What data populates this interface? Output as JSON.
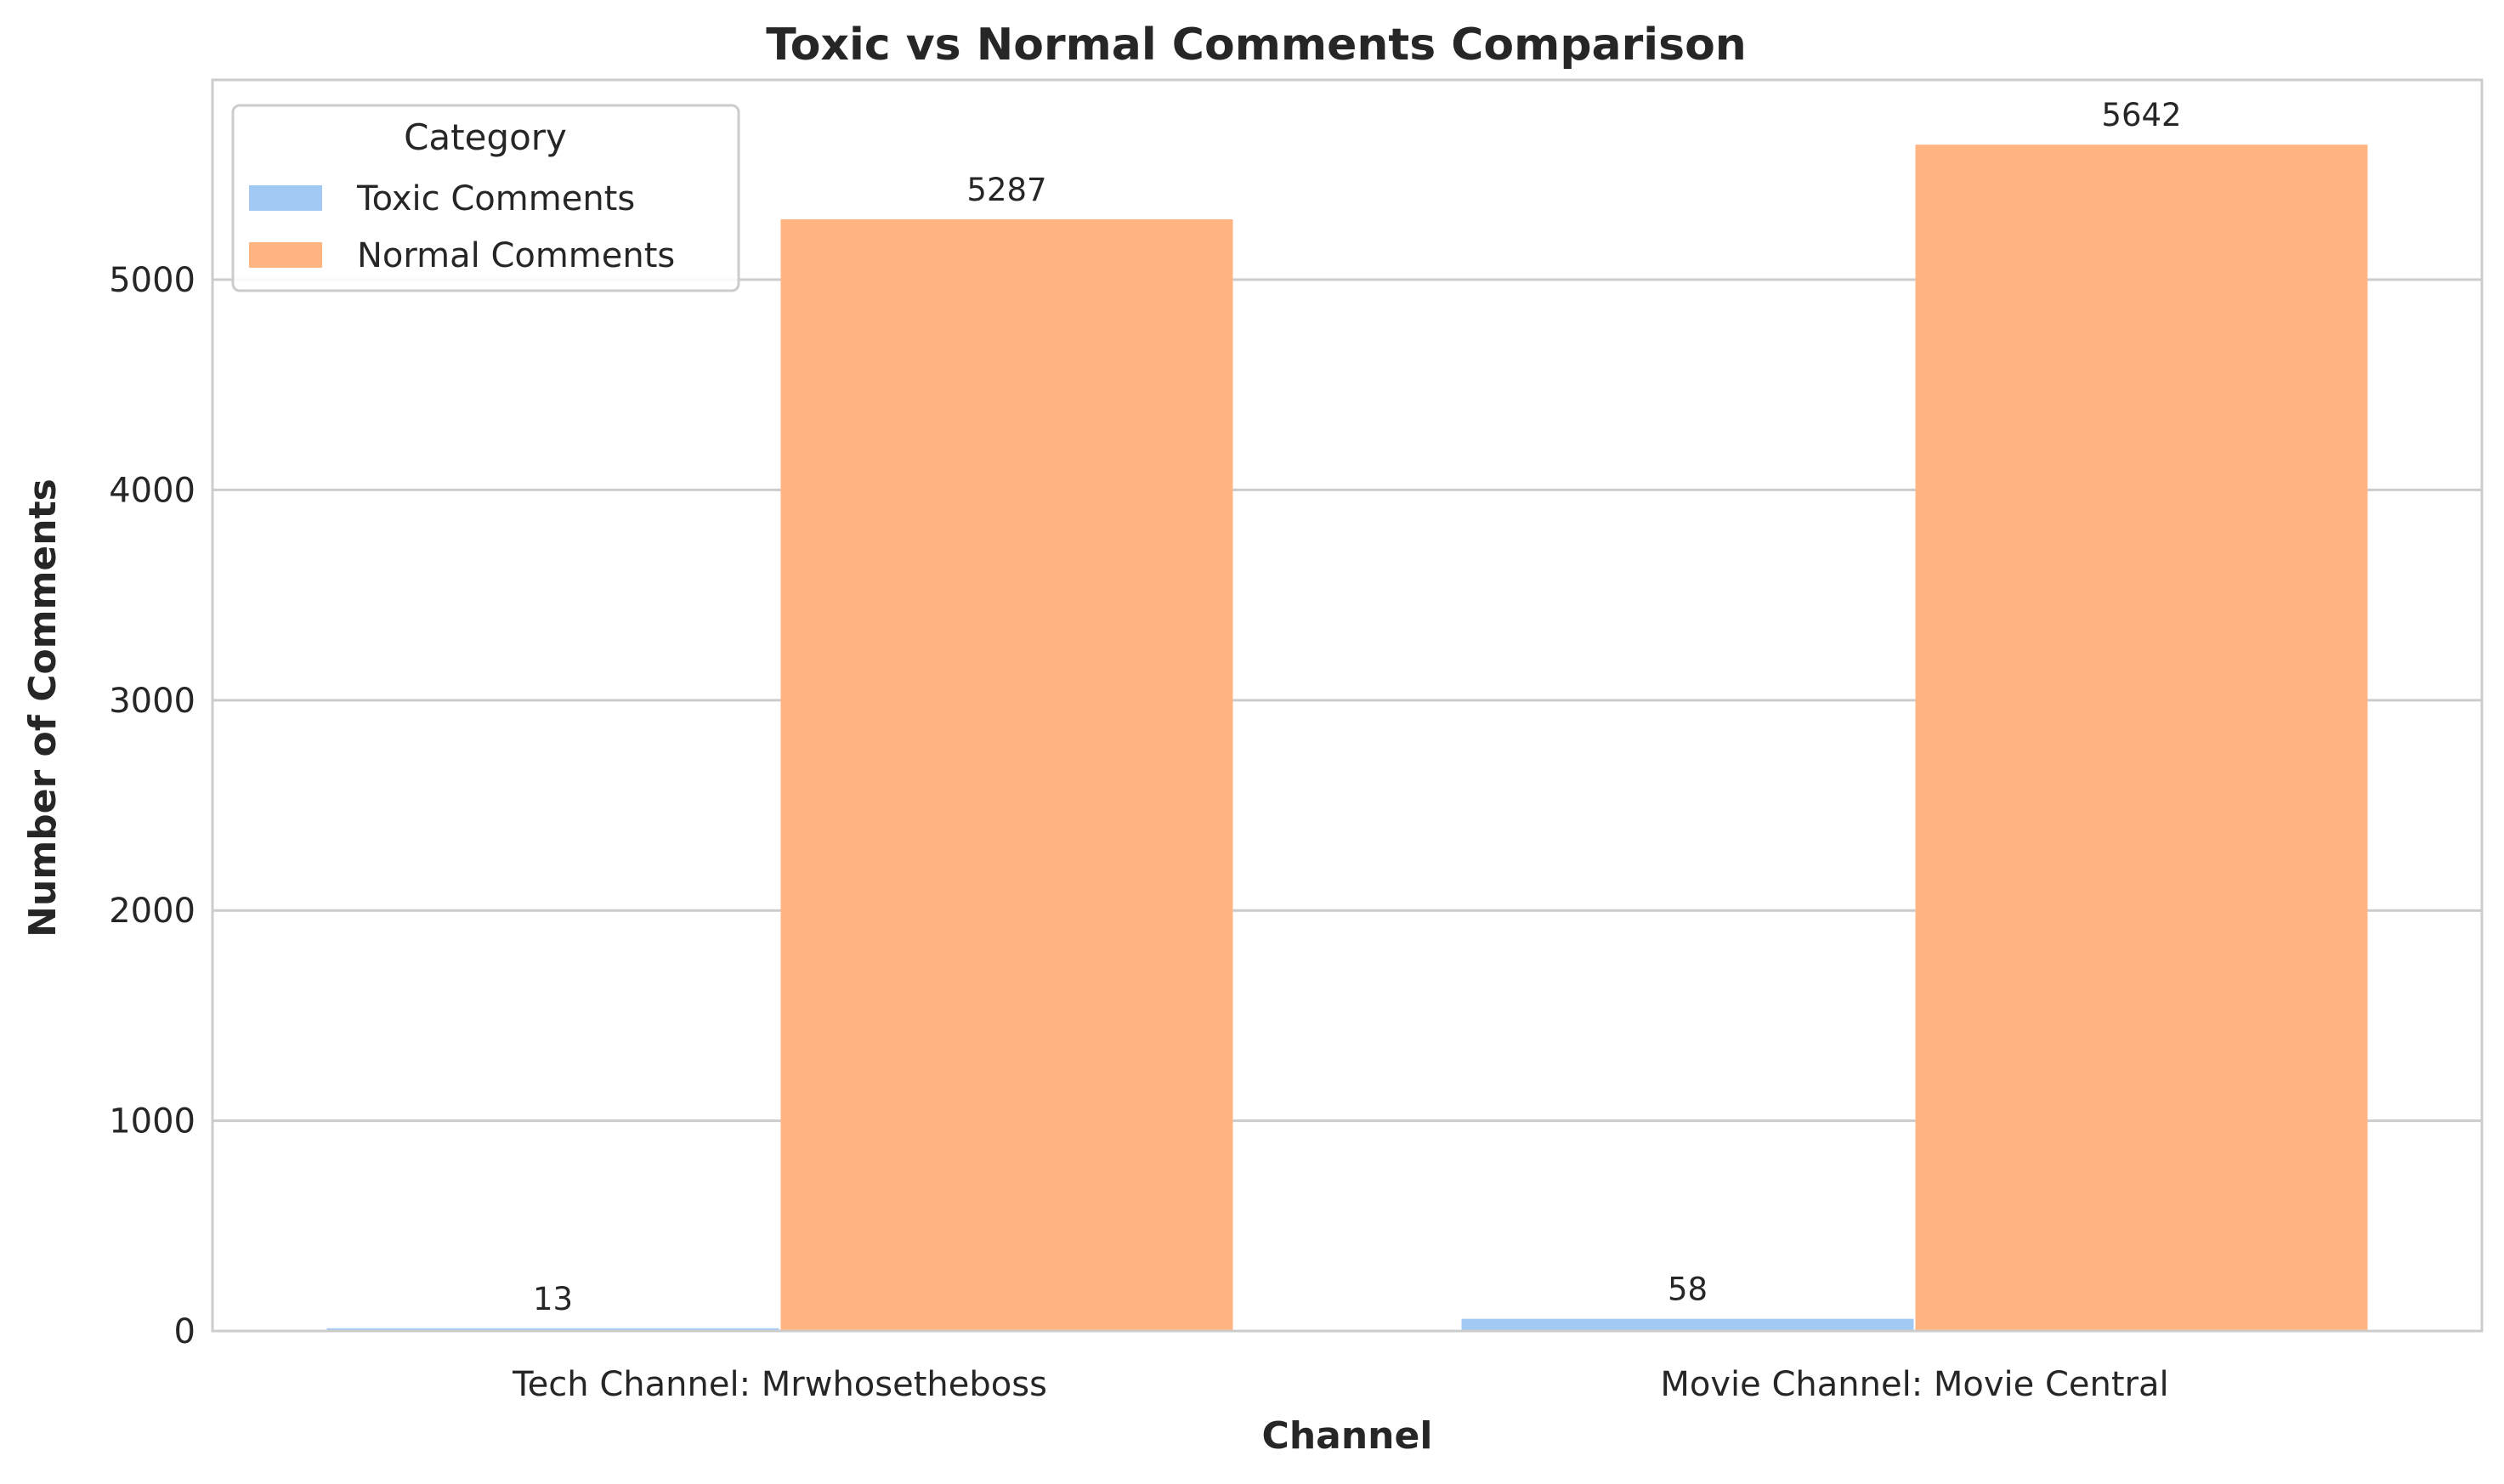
{
  "chart_data": {
    "type": "bar",
    "title": "Toxic vs Normal Comments Comparison",
    "xlabel": "Channel",
    "ylabel": "Number of Comments",
    "categories": [
      "Tech Channel: Mrwhosetheboss",
      "Movie Channel: Movie Central"
    ],
    "series": [
      {
        "name": "Toxic Comments",
        "values": [
          13,
          58
        ],
        "color": "#a1c9f4"
      },
      {
        "name": "Normal Comments",
        "values": [
          5287,
          5642
        ],
        "color": "#ffb482"
      }
    ],
    "ylim": [
      0,
      5950
    ],
    "yticks": [
      0,
      1000,
      2000,
      3000,
      4000,
      5000
    ],
    "grid": true,
    "legend": {
      "title": "Category",
      "position": "top-left"
    }
  }
}
